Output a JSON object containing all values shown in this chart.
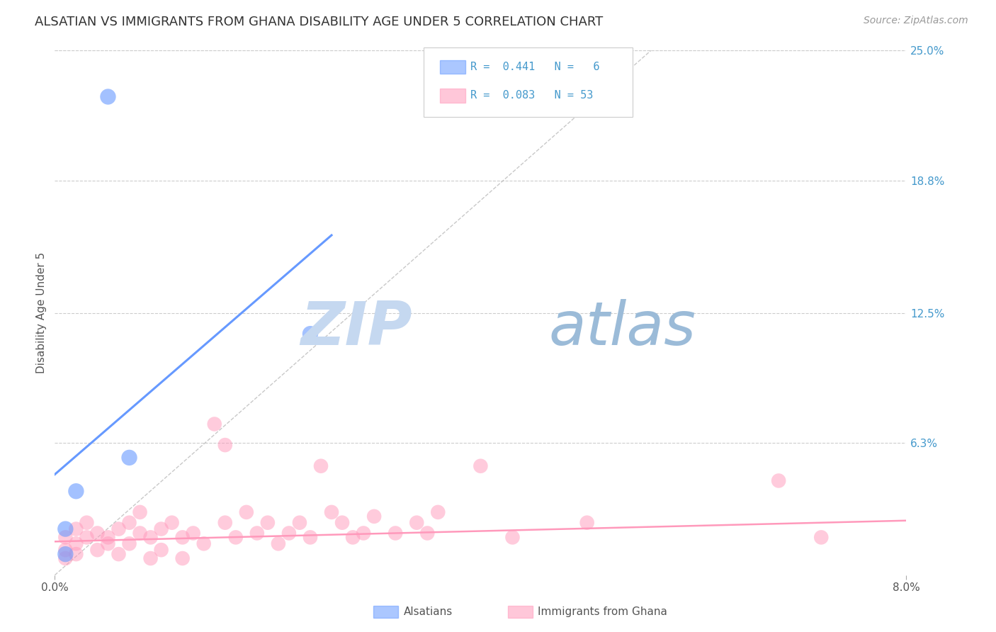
{
  "title": "ALSATIAN VS IMMIGRANTS FROM GHANA DISABILITY AGE UNDER 5 CORRELATION CHART",
  "source": "Source: ZipAtlas.com",
  "ylabel": "Disability Age Under 5",
  "watermark_zip": "ZIP",
  "watermark_atlas": "atlas",
  "xlim": [
    0.0,
    0.08
  ],
  "ylim": [
    0.0,
    0.25
  ],
  "ytick_labels_right": [
    "25.0%",
    "18.8%",
    "12.5%",
    "6.3%"
  ],
  "ytick_positions_right": [
    0.25,
    0.188,
    0.125,
    0.063
  ],
  "grid_color": "#cccccc",
  "background_color": "#ffffff",
  "alsatian_color": "#6699ff",
  "ghana_color": "#ff99bb",
  "alsatian_scatter": [
    [
      0.005,
      0.228
    ],
    [
      0.007,
      0.056
    ],
    [
      0.024,
      0.115
    ],
    [
      0.002,
      0.04
    ],
    [
      0.001,
      0.022
    ],
    [
      0.001,
      0.01
    ]
  ],
  "ghana_scatter": [
    [
      0.001,
      0.018
    ],
    [
      0.001,
      0.012
    ],
    [
      0.001,
      0.008
    ],
    [
      0.002,
      0.022
    ],
    [
      0.002,
      0.015
    ],
    [
      0.002,
      0.01
    ],
    [
      0.003,
      0.018
    ],
    [
      0.003,
      0.025
    ],
    [
      0.004,
      0.02
    ],
    [
      0.004,
      0.012
    ],
    [
      0.005,
      0.018
    ],
    [
      0.005,
      0.015
    ],
    [
      0.006,
      0.022
    ],
    [
      0.006,
      0.01
    ],
    [
      0.007,
      0.025
    ],
    [
      0.007,
      0.015
    ],
    [
      0.008,
      0.02
    ],
    [
      0.008,
      0.03
    ],
    [
      0.009,
      0.018
    ],
    [
      0.009,
      0.008
    ],
    [
      0.01,
      0.022
    ],
    [
      0.01,
      0.012
    ],
    [
      0.011,
      0.025
    ],
    [
      0.012,
      0.018
    ],
    [
      0.012,
      0.008
    ],
    [
      0.013,
      0.02
    ],
    [
      0.014,
      0.015
    ],
    [
      0.015,
      0.072
    ],
    [
      0.016,
      0.062
    ],
    [
      0.016,
      0.025
    ],
    [
      0.017,
      0.018
    ],
    [
      0.018,
      0.03
    ],
    [
      0.019,
      0.02
    ],
    [
      0.02,
      0.025
    ],
    [
      0.021,
      0.015
    ],
    [
      0.022,
      0.02
    ],
    [
      0.023,
      0.025
    ],
    [
      0.024,
      0.018
    ],
    [
      0.025,
      0.052
    ],
    [
      0.026,
      0.03
    ],
    [
      0.027,
      0.025
    ],
    [
      0.028,
      0.018
    ],
    [
      0.029,
      0.02
    ],
    [
      0.03,
      0.028
    ],
    [
      0.032,
      0.02
    ],
    [
      0.034,
      0.025
    ],
    [
      0.035,
      0.02
    ],
    [
      0.036,
      0.03
    ],
    [
      0.04,
      0.052
    ],
    [
      0.043,
      0.018
    ],
    [
      0.05,
      0.025
    ],
    [
      0.068,
      0.045
    ],
    [
      0.072,
      0.018
    ]
  ],
  "alsatian_line_x": [
    0.0,
    0.026
  ],
  "alsatian_line_y": [
    0.048,
    0.162
  ],
  "ghana_line_x": [
    0.0,
    0.08
  ],
  "ghana_line_y": [
    0.016,
    0.026
  ],
  "dashed_line_x": [
    0.0,
    0.056
  ],
  "dashed_line_y": [
    0.0,
    0.25
  ],
  "title_fontsize": 13,
  "label_fontsize": 11,
  "tick_fontsize": 11,
  "legend_fontsize": 12,
  "source_fontsize": 10
}
